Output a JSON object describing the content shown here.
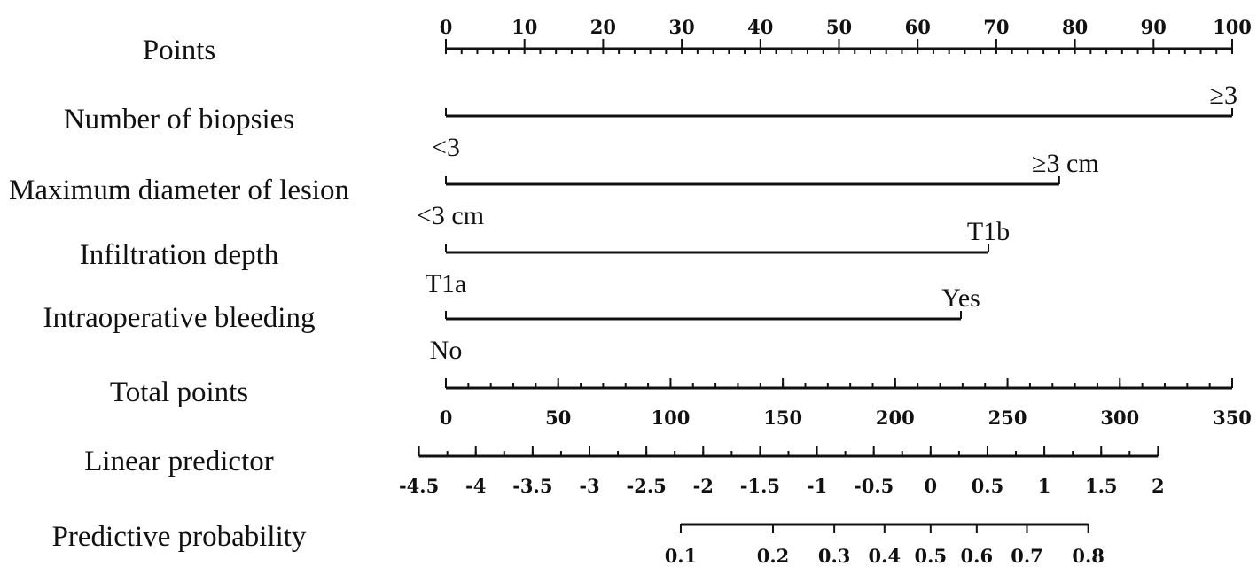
{
  "chart_data": {
    "type": "nomogram",
    "rows": [
      {
        "label": "Points",
        "kind": "scale",
        "range": [
          0,
          100
        ],
        "major_ticks": [
          0,
          10,
          20,
          30,
          40,
          50,
          60,
          70,
          80,
          90,
          100
        ],
        "tick_labels": [
          "0",
          "10",
          "20",
          "30",
          "40",
          "50",
          "60",
          "70",
          "80",
          "90",
          "100"
        ],
        "minor_step": 2,
        "labels_position": "above"
      },
      {
        "label": "Number of biopsies",
        "kind": "variable",
        "levels": [
          {
            "label": "<3",
            "points": 0
          },
          {
            "label": "≥3",
            "points": 100
          }
        ]
      },
      {
        "label": "Maximum diameter of lesion",
        "kind": "variable",
        "levels": [
          {
            "label": "<3 cm",
            "points": 0
          },
          {
            "label": "≥3 cm",
            "points": 78
          }
        ]
      },
      {
        "label": "Infiltration depth",
        "kind": "variable",
        "levels": [
          {
            "label": "T1a",
            "points": 0
          },
          {
            "label": "T1b",
            "points": 69
          }
        ]
      },
      {
        "label": "Intraoperative bleeding",
        "kind": "variable",
        "levels": [
          {
            "label": "No",
            "points": 0
          },
          {
            "label": "Yes",
            "points": 65.5
          }
        ]
      },
      {
        "label": "Total points",
        "kind": "scale",
        "range": [
          0,
          350
        ],
        "major_ticks": [
          0,
          50,
          100,
          150,
          200,
          250,
          300,
          350
        ],
        "tick_labels": [
          "0",
          "50",
          "100",
          "150",
          "200",
          "250",
          "300",
          "350"
        ],
        "minor_step": 10,
        "labels_position": "below"
      },
      {
        "label": "Linear predictor",
        "kind": "scale",
        "range": [
          -4.5,
          2
        ],
        "total_points_at_range": [
          -12,
          317
        ],
        "major_ticks": [
          -4.5,
          -4,
          -3.5,
          -3,
          -2.5,
          -2,
          -1.5,
          -1,
          -0.5,
          0,
          0.5,
          1,
          1.5,
          2
        ],
        "tick_labels": [
          "-4.5",
          "-4",
          "-3.5",
          "-3",
          "-2.5",
          "-2",
          "-1.5",
          "-1",
          "-0.5",
          "0",
          "0.5",
          "1",
          "1.5",
          "2"
        ],
        "minor_step": 0.25,
        "labels_position": "below"
      },
      {
        "label": "Predictive probability",
        "kind": "probability",
        "major_ticks": [
          0.1,
          0.2,
          0.3,
          0.4,
          0.5,
          0.6,
          0.7,
          0.8
        ],
        "tick_labels": [
          "0.1",
          "0.2",
          "0.3",
          "0.4",
          "0.5",
          "0.6",
          "0.7",
          "0.8"
        ],
        "labels_position": "below"
      }
    ]
  }
}
